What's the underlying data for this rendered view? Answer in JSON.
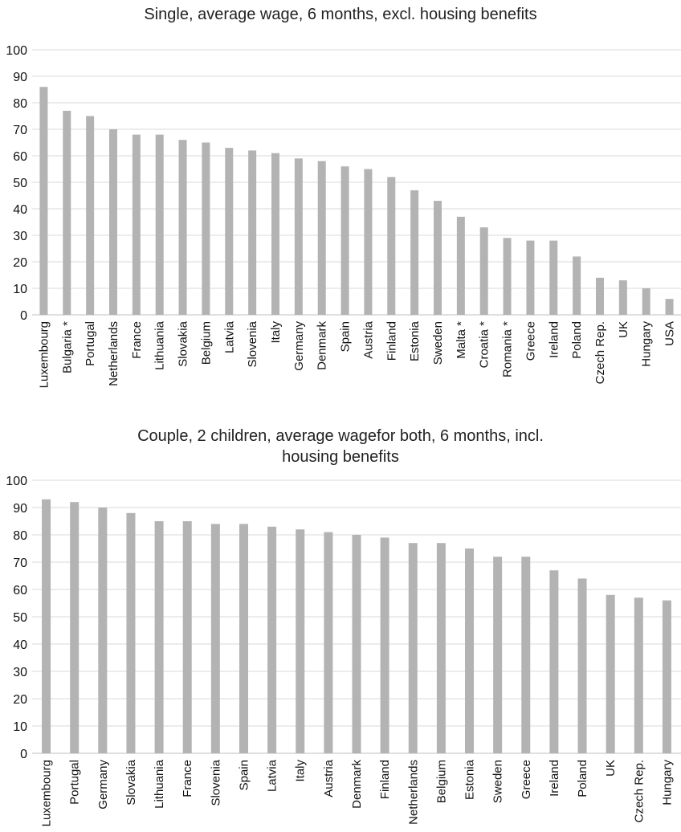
{
  "chart_data": [
    {
      "type": "bar",
      "title": "Single, average wage, 6 months, excl. housing benefits",
      "xlabel": "",
      "ylabel": "",
      "ylim": [
        0,
        100
      ],
      "yticks": [
        0,
        10,
        20,
        30,
        40,
        50,
        60,
        70,
        80,
        90,
        100
      ],
      "grid": true,
      "bar_color": "#b3b3b3",
      "categories": [
        "Luxembourg",
        "Bulgaria *",
        "Portugal",
        "Netherlands",
        "France",
        "Lithuania",
        "Slovakia",
        "Belgium",
        "Latvia",
        "Slovenia",
        "Italy",
        "Germany",
        "Denmark",
        "Spain",
        "Austria",
        "Finland",
        "Estonia",
        "Sweden",
        "Malta *",
        "Croatia *",
        "Romania *",
        "Greece",
        "Ireland",
        "Poland",
        "Czech Rep.",
        "UK",
        "Hungary",
        "USA"
      ],
      "values": [
        86,
        77,
        75,
        70,
        68,
        68,
        66,
        65,
        63,
        62,
        61,
        59,
        58,
        56,
        55,
        52,
        47,
        43,
        37,
        33,
        29,
        28,
        28,
        22,
        14,
        13,
        10,
        6
      ]
    },
    {
      "type": "bar",
      "title": "Couple, 2 children, average wagefor both, 6 months, incl. housing benefits",
      "xlabel": "",
      "ylabel": "",
      "ylim": [
        0,
        100
      ],
      "yticks": [
        0,
        10,
        20,
        30,
        40,
        50,
        60,
        70,
        80,
        90,
        100
      ],
      "grid": true,
      "bar_color": "#b3b3b3",
      "categories": [
        "Luxembourg",
        "Portugal",
        "Germany",
        "Slovakia",
        "Lithuania",
        "France",
        "Slovenia",
        "Spain",
        "Latvia",
        "Italy",
        "Austria",
        "Denmark",
        "Finland",
        "Netherlands",
        "Belgium",
        "Estonia",
        "Sweden",
        "Greece",
        "Ireland",
        "Poland",
        "UK",
        "Czech Rep.",
        "Hungary"
      ],
      "values": [
        93,
        92,
        90,
        88,
        85,
        85,
        84,
        84,
        83,
        82,
        81,
        80,
        79,
        77,
        77,
        75,
        72,
        72,
        67,
        64,
        58,
        57,
        56
      ]
    }
  ]
}
